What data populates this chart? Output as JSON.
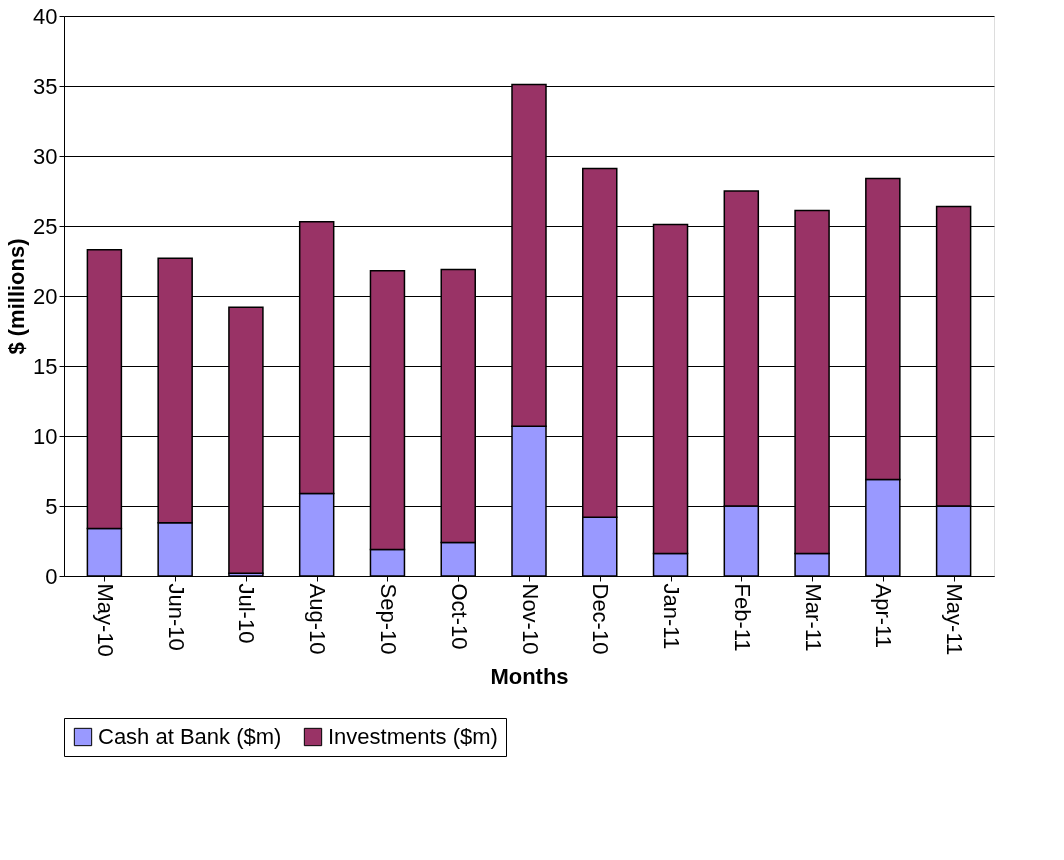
{
  "chart_data": {
    "type": "bar",
    "stacked": true,
    "xlabel": "Months",
    "ylabel": "$ (millions)",
    "categories": [
      "May-10",
      "Jun-10",
      "Jul-10",
      "Aug-10",
      "Sep-10",
      "Oct-10",
      "Nov-10",
      "Dec-10",
      "Jan-11",
      "Feb-11",
      "Mar-11",
      "Apr-11",
      "May-11"
    ],
    "series": [
      {
        "name": "Cash at Bank ($m)",
        "color": "#9999ff",
        "values": [
          3.4,
          3.8,
          0.2,
          5.9,
          1.9,
          2.4,
          10.7,
          4.2,
          1.6,
          5.0,
          1.6,
          6.9,
          5.0
        ]
      },
      {
        "name": "Investments ($m)",
        "color": "#993366",
        "values": [
          19.9,
          18.9,
          19.0,
          19.4,
          19.9,
          19.5,
          24.4,
          24.9,
          23.5,
          22.5,
          24.5,
          21.5,
          21.4
        ]
      }
    ],
    "ylim": [
      0,
      40
    ],
    "yticks": [
      0,
      5,
      10,
      15,
      20,
      25,
      30,
      35,
      40
    ],
    "grid": "y",
    "legend": "bottom"
  }
}
